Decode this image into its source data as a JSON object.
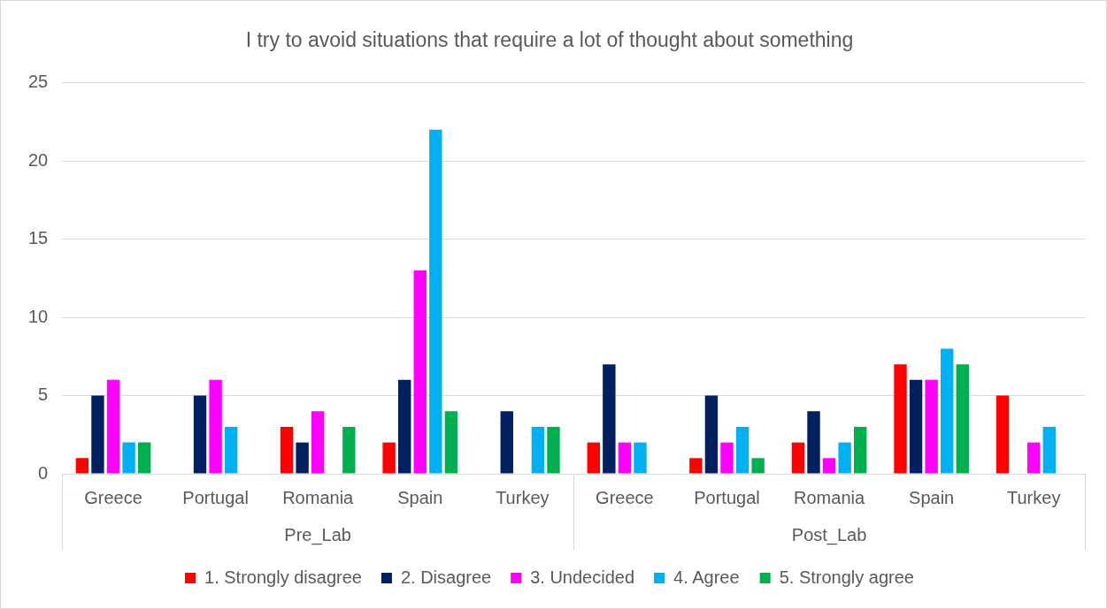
{
  "chart_data": {
    "type": "bar",
    "title": "I try to avoid situations that require a lot of thought about something",
    "categories": [
      "Greece",
      "Portugal",
      "Romania",
      "Spain",
      "Turkey",
      "Greece",
      "Portugal",
      "Romania",
      "Spain",
      "Turkey"
    ],
    "annotations": [
      "Pre_Lab",
      "Post_Lab"
    ],
    "series": [
      {
        "name": "1. Strongly disagree",
        "color": "#ff0000",
        "values": [
          1,
          null,
          3,
          2,
          null,
          2,
          1,
          2,
          7,
          5
        ]
      },
      {
        "name": "2. Disagree",
        "color": "#002060",
        "values": [
          5,
          5,
          2,
          6,
          4,
          7,
          5,
          4,
          6,
          null
        ]
      },
      {
        "name": "3. Undecided",
        "color": "#ff00ff",
        "values": [
          6,
          6,
          4,
          13,
          null,
          2,
          2,
          1,
          6,
          2
        ]
      },
      {
        "name": "4. Agree",
        "color": "#00b0f0",
        "values": [
          2,
          3,
          null,
          22,
          3,
          2,
          3,
          2,
          8,
          3
        ]
      },
      {
        "name": "5. Strongly agree",
        "color": "#00b050",
        "values": [
          2,
          null,
          3,
          4,
          3,
          null,
          1,
          3,
          7,
          null
        ]
      }
    ],
    "ylim": [
      0,
      25
    ],
    "yticks": [
      0,
      5,
      10,
      15,
      20,
      25
    ],
    "grid": "y",
    "legend": "bottom"
  }
}
